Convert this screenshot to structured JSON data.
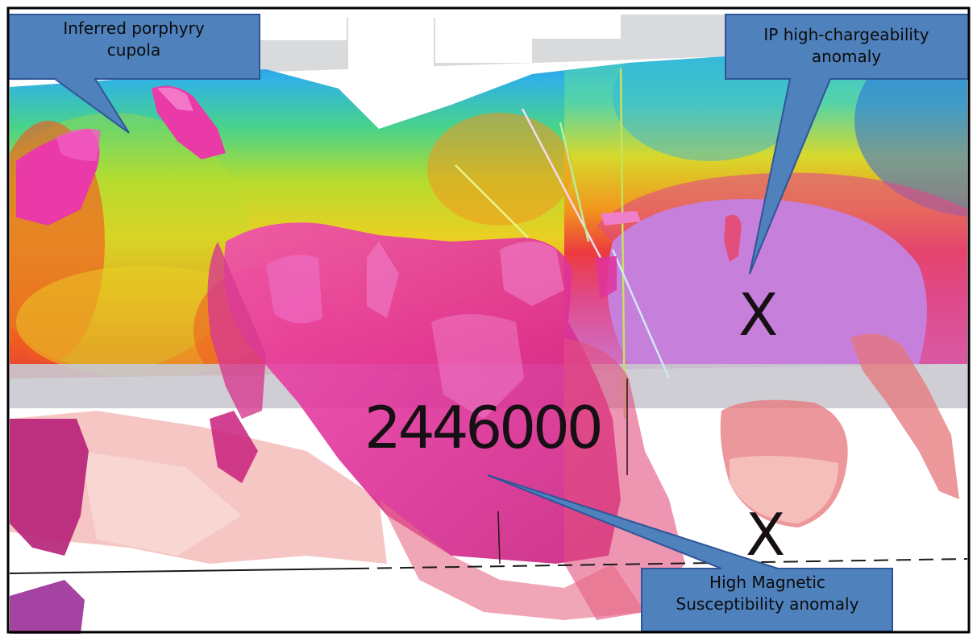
{
  "callouts": {
    "cupola": "Inferred porphyry cupola",
    "cupola_lines": [
      "Inferred porphyry",
      "cupola"
    ],
    "ip_anomaly": "IP high-chargeability anomaly",
    "ip_anomaly_lines": [
      "IP high-chargeability",
      "anomaly"
    ],
    "magnetic_anomaly": "High Magnetic Susceptibility anomaly",
    "magnetic_anomaly_lines": [
      "High Magnetic",
      "Susceptibility anomaly"
    ]
  },
  "section": {
    "coordinate_label": "2446000",
    "ip_marker": "X",
    "magnetic_marker": "X"
  },
  "colors": {
    "callout_fill": "#4f81bd",
    "callout_stroke": "#2f5597",
    "magnetic_body": "#e0339b",
    "ip_anomaly_fill": "#c77fdc",
    "secondary_body": "#e6757a"
  }
}
